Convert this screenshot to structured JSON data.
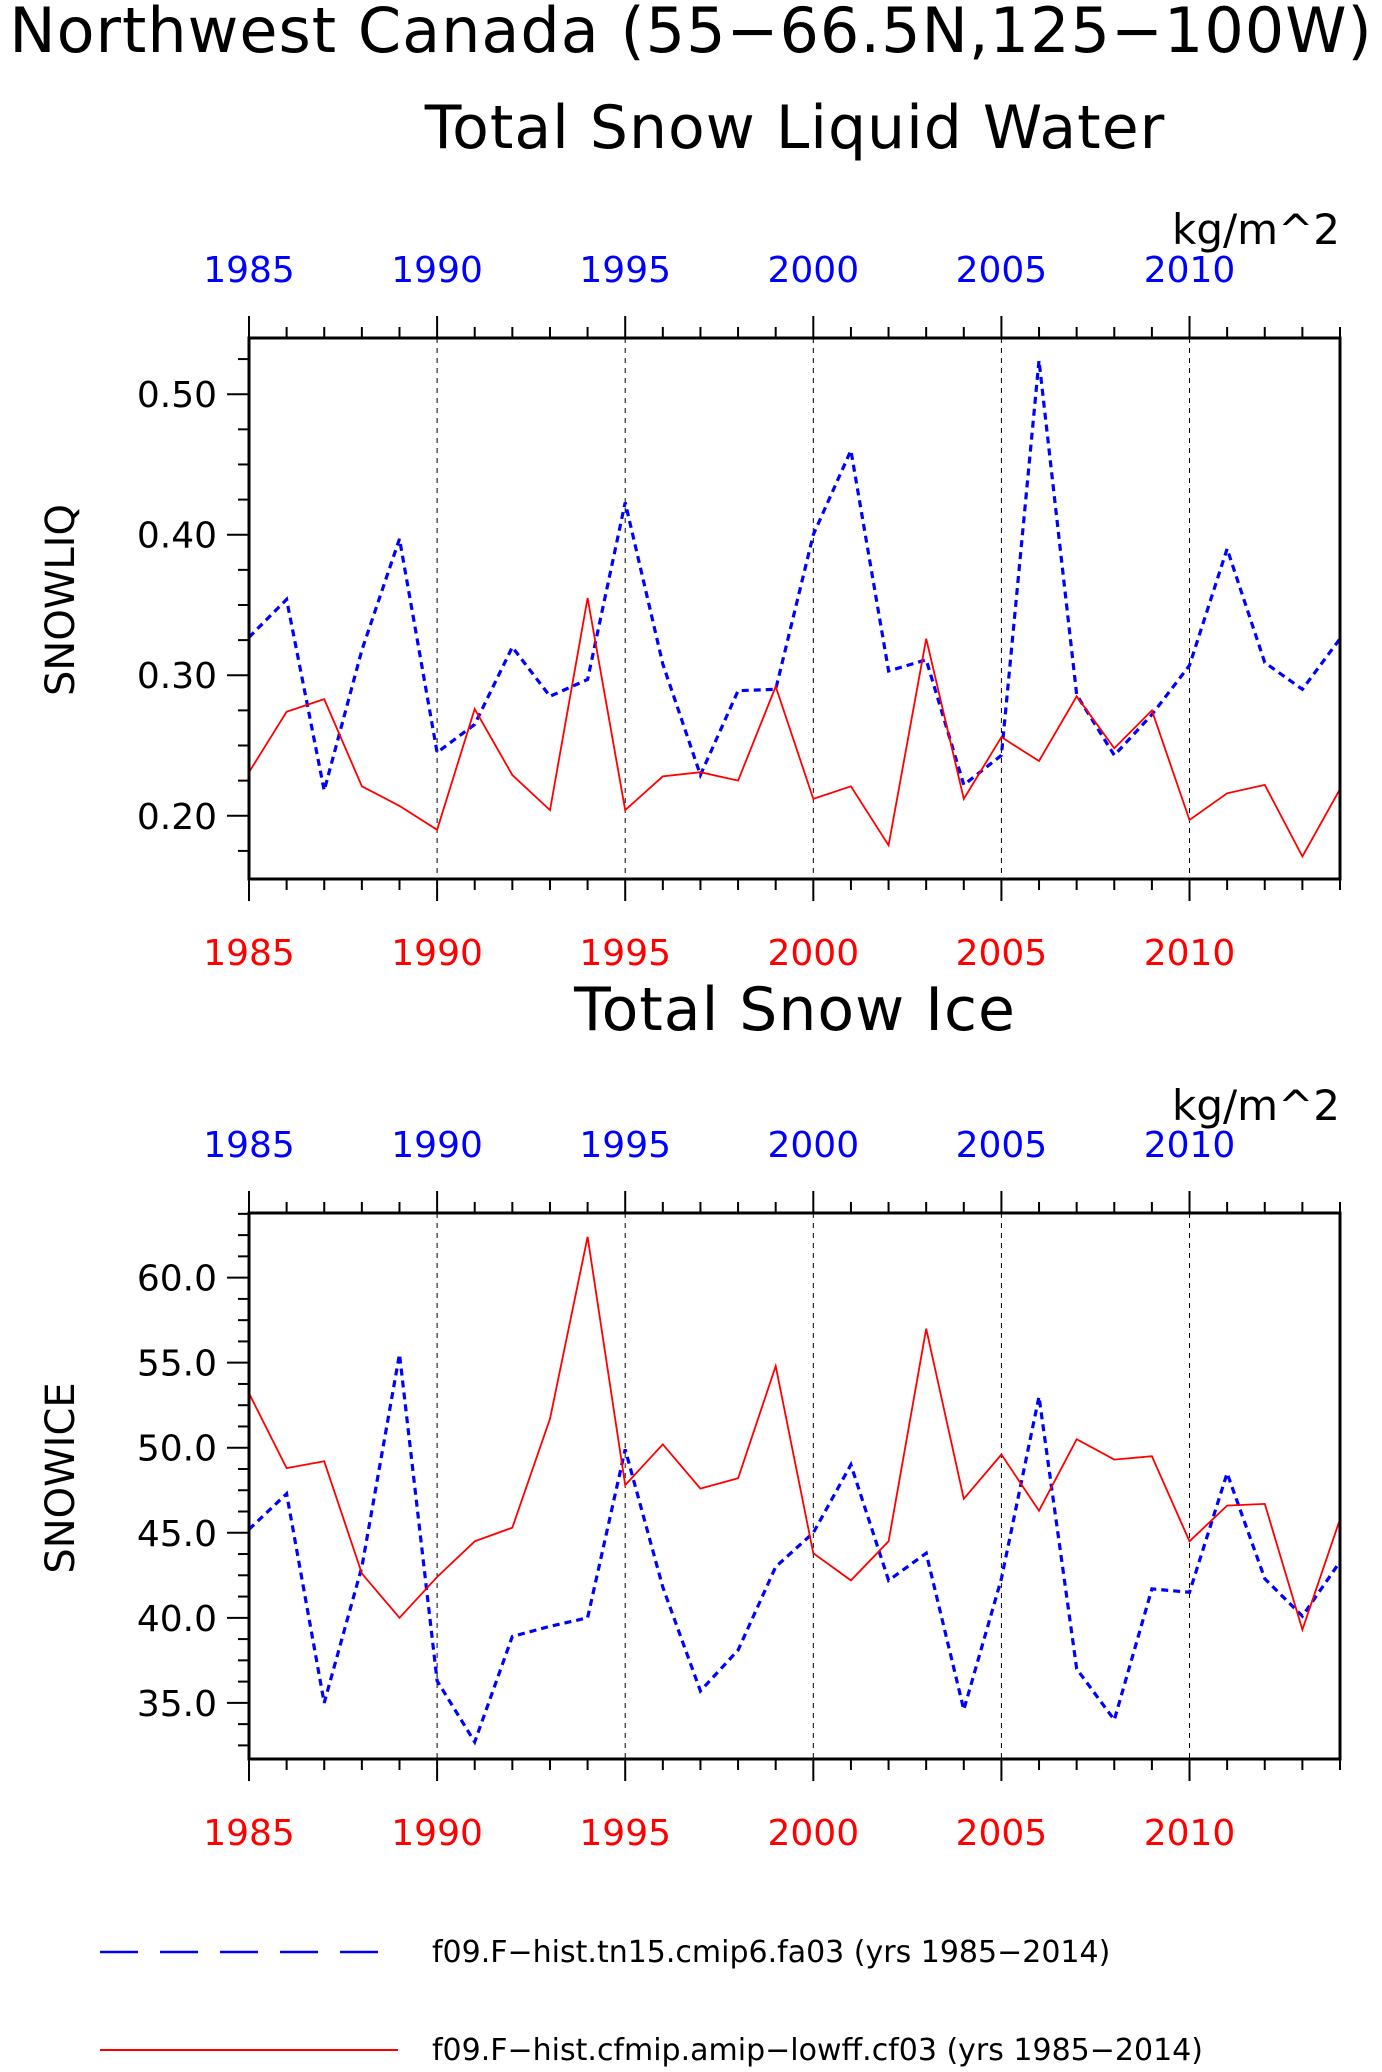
{
  "page": {
    "title": "Northwest Canada (55−66.5N,125−100W)"
  },
  "colors": {
    "series1": "#0000ff",
    "series2": "#ff0000",
    "axis": "#000000"
  },
  "legend": [
    {
      "label": "f09.F−hist.tn15.cmip6.fa03 (yrs 1985−2014)",
      "color": "#0000ff",
      "style": "dashed"
    },
    {
      "label": "f09.F−hist.cfmip.amip−lowff.cf03 (yrs 1985−2014)",
      "color": "#ff0000",
      "style": "solid"
    }
  ],
  "chart_data": [
    {
      "type": "line",
      "title": "Total Snow Liquid Water",
      "units": "kg/m^2",
      "ylabel": "SNOWLIQ",
      "xlim": [
        1985,
        2014
      ],
      "ylim": [
        0.155,
        0.54
      ],
      "yticks": [
        0.2,
        0.3,
        0.4,
        0.5
      ],
      "ytick_labels": [
        "0.20",
        "0.30",
        "0.40",
        "0.50"
      ],
      "xticks": [
        1985,
        1990,
        1995,
        2000,
        2005,
        2010
      ],
      "xtick_labels": [
        "1985",
        "1990",
        "1995",
        "2000",
        "2005",
        "2010"
      ],
      "grid_x": [
        1990,
        1995,
        2000,
        2005,
        2010
      ],
      "x": [
        1985,
        1986,
        1987,
        1988,
        1989,
        1990,
        1991,
        1992,
        1993,
        1994,
        1995,
        1996,
        1997,
        1998,
        1999,
        2000,
        2001,
        2002,
        2003,
        2004,
        2005,
        2006,
        2007,
        2008,
        2009,
        2010,
        2011,
        2012,
        2013,
        2014
      ],
      "series": [
        {
          "values": [
            0.327,
            0.354,
            0.218,
            0.318,
            0.397,
            0.245,
            0.265,
            0.32,
            0.285,
            0.297,
            0.423,
            0.308,
            0.229,
            0.289,
            0.29,
            0.4,
            0.46,
            0.303,
            0.311,
            0.222,
            0.243,
            0.524,
            0.286,
            0.243,
            0.272,
            0.307,
            0.39,
            0.309,
            0.29,
            0.326
          ]
        },
        {
          "values": [
            0.231,
            0.274,
            0.283,
            0.221,
            0.207,
            0.19,
            0.276,
            0.229,
            0.204,
            0.355,
            0.204,
            0.228,
            0.231,
            0.225,
            0.292,
            0.212,
            0.221,
            0.179,
            0.326,
            0.212,
            0.256,
            0.239,
            0.285,
            0.248,
            0.275,
            0.197,
            0.216,
            0.222,
            0.171,
            0.219
          ]
        }
      ]
    },
    {
      "type": "line",
      "title": "Total Snow Ice",
      "units": "kg/m^2",
      "ylabel": "SNOWICE",
      "xlim": [
        1985,
        2014
      ],
      "ylim": [
        31.7,
        63.8
      ],
      "yticks": [
        35.0,
        40.0,
        45.0,
        50.0,
        55.0,
        60.0
      ],
      "ytick_labels": [
        "35.0",
        "40.0",
        "45.0",
        "50.0",
        "55.0",
        "60.0"
      ],
      "xticks": [
        1985,
        1990,
        1995,
        2000,
        2005,
        2010
      ],
      "xtick_labels": [
        "1985",
        "1990",
        "1995",
        "2000",
        "2005",
        "2010"
      ],
      "grid_x": [
        1990,
        1995,
        2000,
        2005,
        2010
      ],
      "x": [
        1985,
        1986,
        1987,
        1988,
        1989,
        1990,
        1991,
        1992,
        1993,
        1994,
        1995,
        1996,
        1997,
        1998,
        1999,
        2000,
        2001,
        2002,
        2003,
        2004,
        2005,
        2006,
        2007,
        2008,
        2009,
        2010,
        2011,
        2012,
        2013,
        2014
      ],
      "series": [
        {
          "values": [
            45.2,
            47.3,
            35.0,
            43.0,
            55.5,
            36.3,
            32.7,
            38.9,
            39.5,
            40.0,
            49.9,
            41.8,
            35.7,
            38.1,
            43.0,
            45.0,
            49.0,
            42.2,
            43.8,
            34.6,
            42.3,
            53.0,
            37.0,
            34.0,
            41.7,
            41.5,
            48.5,
            42.3,
            40.1,
            43.3
          ]
        },
        {
          "values": [
            53.2,
            48.8,
            49.2,
            42.6,
            40.0,
            42.4,
            44.5,
            45.3,
            51.7,
            62.4,
            47.8,
            50.2,
            47.6,
            48.2,
            54.8,
            43.8,
            42.2,
            44.5,
            57.0,
            47.0,
            49.6,
            46.3,
            50.5,
            49.3,
            49.5,
            44.5,
            46.6,
            46.7,
            39.3,
            45.8
          ]
        }
      ]
    }
  ]
}
